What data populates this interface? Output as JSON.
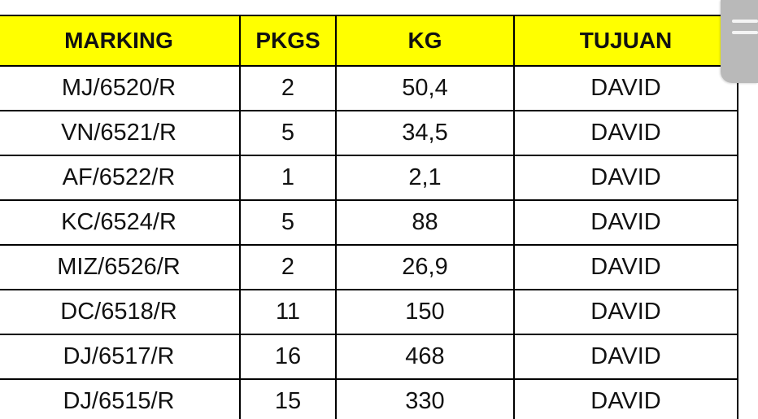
{
  "table": {
    "headers": [
      "MARKING",
      "PKGS",
      "KG",
      "TUJUAN"
    ],
    "rows": [
      [
        "MJ/6520/R",
        "2",
        "50,4",
        "DAVID"
      ],
      [
        "VN/6521/R",
        "5",
        "34,5",
        "DAVID"
      ],
      [
        "AF/6522/R",
        "1",
        "2,1",
        "DAVID"
      ],
      [
        "KC/6524/R",
        "5",
        "88",
        "DAVID"
      ],
      [
        "MIZ/6526/R",
        "2",
        "26,9",
        "DAVID"
      ],
      [
        "DC/6518/R",
        "11",
        "150",
        "DAVID"
      ],
      [
        "DJ/6517/R",
        "16",
        "468",
        "DAVID"
      ],
      [
        "DJ/6515/R",
        "15",
        "330",
        "DAVID"
      ]
    ]
  },
  "colors": {
    "header_bg": "#ffff00",
    "border": "#000000",
    "scroll_handle": "#b9b9b9"
  },
  "icons": {
    "scroll_handle": "grip-lines-icon"
  }
}
